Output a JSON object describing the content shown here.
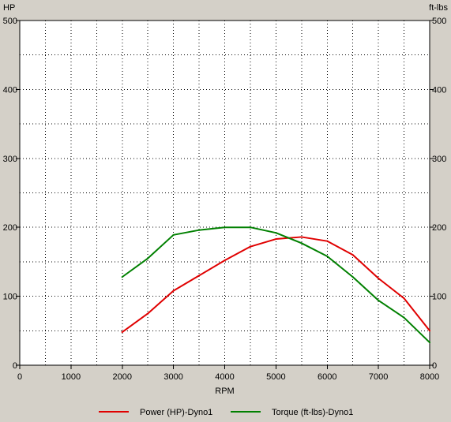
{
  "chart_data": {
    "type": "line",
    "xlabel": "RPM",
    "ylabel_left": "HP",
    "ylabel_right": "ft-lbs",
    "xlim": [
      0,
      8000
    ],
    "ylim_left": [
      0,
      500
    ],
    "ylim_right": [
      0,
      500
    ],
    "x_ticks": [
      "0",
      "1000",
      "2000",
      "3000",
      "4000",
      "5000",
      "6000",
      "7000",
      "8000"
    ],
    "y_ticks_left": [
      "0",
      "100",
      "200",
      "300",
      "400",
      "500"
    ],
    "y_ticks_right": [
      "0",
      "100",
      "200",
      "300",
      "400",
      "500"
    ],
    "grid": true,
    "legend_position": "bottom",
    "series": [
      {
        "name": "Power (HP)-Dyno1",
        "color": "#e00000",
        "axis": "left",
        "x": [
          2000,
          2500,
          3000,
          3500,
          4000,
          4500,
          5000,
          5500,
          6000,
          6500,
          7000,
          7500,
          8000
        ],
        "y": [
          48,
          75,
          108,
          130,
          152,
          172,
          183,
          186,
          180,
          160,
          126,
          97,
          50
        ]
      },
      {
        "name": "Torque (ft-lbs)-Dyno1",
        "color": "#008000",
        "axis": "right",
        "x": [
          2000,
          2500,
          3000,
          3500,
          4000,
          4500,
          5000,
          5500,
          6000,
          6500,
          7000,
          7500,
          8000
        ],
        "y": [
          128,
          155,
          189,
          196,
          200,
          200,
          192,
          177,
          158,
          128,
          94,
          69,
          33
        ]
      }
    ]
  }
}
